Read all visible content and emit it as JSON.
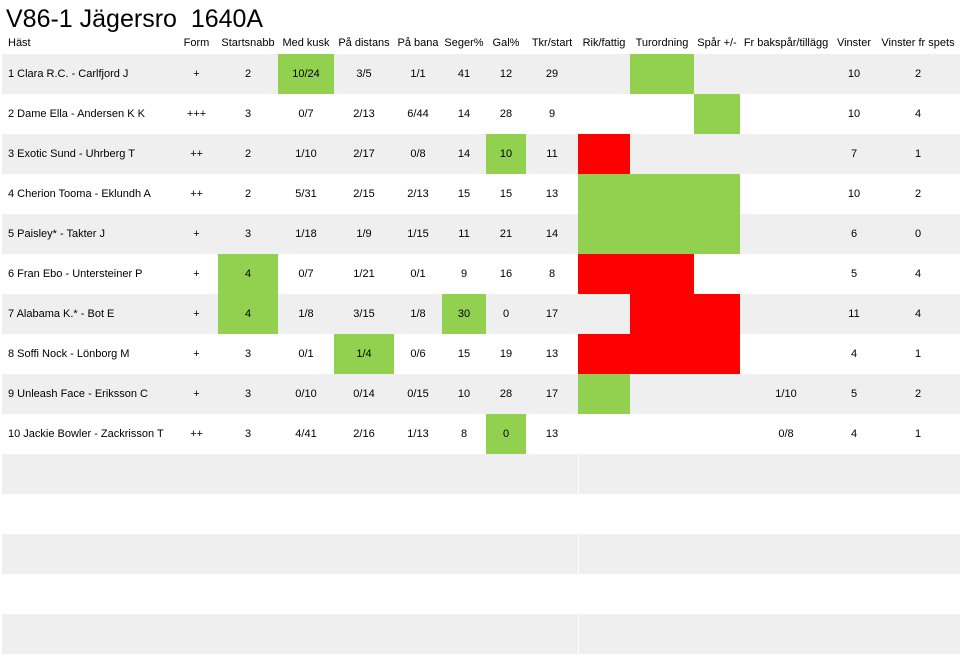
{
  "title": "V86-1 Jägersro  1640A",
  "headers": [
    "Häst",
    "Form",
    "Startsnabb",
    "Med kusk",
    "På distans",
    "På bana",
    "Seger%",
    "Gal%",
    "Tkr/start",
    "Rik/fattig",
    "Turordning",
    "Spår +/-",
    "Fr bakspår/tillägg",
    "Vinster",
    "Vinster fr spets"
  ],
  "rows": [
    {
      "cells": [
        "1 Clara R.C. - Carlfjord J",
        "+",
        "2",
        "10/24",
        "3/5",
        "1/1",
        "41",
        "12",
        "29",
        "",
        "",
        "",
        "",
        "10",
        "2"
      ],
      "colors": [
        "",
        "",
        "",
        "g",
        "",
        "",
        "",
        "",
        "",
        "",
        "g",
        "",
        "",
        "",
        ""
      ]
    },
    {
      "cells": [
        "2 Dame Ella - Andersen K K",
        "+++",
        "3",
        "0/7",
        "2/13",
        "6/44",
        "14",
        "28",
        "9",
        "",
        "",
        "",
        "",
        "10",
        "4"
      ],
      "colors": [
        "",
        "",
        "",
        "",
        "",
        "",
        "",
        "",
        "",
        "",
        "",
        "g",
        "",
        "",
        ""
      ]
    },
    {
      "cells": [
        "3 Exotic Sund - Uhrberg T",
        "++",
        "2",
        "1/10",
        "2/17",
        "0/8",
        "14",
        "10",
        "11",
        "",
        "",
        "",
        "",
        "7",
        "1"
      ],
      "colors": [
        "",
        "",
        "",
        "",
        "",
        "",
        "",
        "g",
        "",
        "r",
        "",
        "",
        "",
        "",
        ""
      ]
    },
    {
      "cells": [
        "4 Cherion Tooma - Eklundh A",
        "++",
        "2",
        "5/31",
        "2/15",
        "2/13",
        "15",
        "15",
        "13",
        "",
        "",
        "",
        "",
        "10",
        "2"
      ],
      "colors": [
        "",
        "",
        "",
        "",
        "",
        "",
        "",
        "",
        "",
        "g",
        "g",
        "g",
        "",
        "",
        ""
      ]
    },
    {
      "cells": [
        "5 Paisley* - Takter J",
        "+",
        "3",
        "1/18",
        "1/9",
        "1/15",
        "11",
        "21",
        "14",
        "",
        "",
        "",
        "",
        "6",
        "0"
      ],
      "colors": [
        "",
        "",
        "",
        "",
        "",
        "",
        "",
        "",
        "",
        "g",
        "g",
        "g",
        "",
        "",
        ""
      ]
    },
    {
      "cells": [
        "6 Fran Ebo - Untersteiner P",
        "+",
        "4",
        "0/7",
        "1/21",
        "0/1",
        "9",
        "16",
        "8",
        "",
        "",
        "",
        "",
        "5",
        "4"
      ],
      "colors": [
        "",
        "",
        "g",
        "",
        "",
        "",
        "",
        "",
        "",
        "r",
        "r",
        "",
        "",
        "",
        ""
      ]
    },
    {
      "cells": [
        "7 Alabama K.* - Bot E",
        "+",
        "4",
        "1/8",
        "3/15",
        "1/8",
        "30",
        "0",
        "17",
        "",
        "",
        "",
        "",
        "11",
        "4"
      ],
      "colors": [
        "",
        "",
        "g",
        "",
        "",
        "",
        "g",
        "",
        "",
        "",
        "r",
        "r",
        "",
        "",
        ""
      ]
    },
    {
      "cells": [
        "8 Soffi Nock - Lönborg M",
        "+",
        "3",
        "0/1",
        "1/4",
        "0/6",
        "15",
        "19",
        "13",
        "",
        "",
        "",
        "",
        "4",
        "1"
      ],
      "colors": [
        "",
        "",
        "",
        "",
        "g",
        "",
        "",
        "",
        "",
        "r",
        "r",
        "r",
        "",
        "",
        ""
      ]
    },
    {
      "cells": [
        "9 Unleash Face - Eriksson C",
        "+",
        "3",
        "0/10",
        "0/14",
        "0/15",
        "10",
        "28",
        "17",
        "",
        "",
        "",
        "1/10",
        "5",
        "2"
      ],
      "colors": [
        "",
        "",
        "",
        "",
        "",
        "",
        "",
        "",
        "",
        "g",
        "",
        "",
        "",
        "",
        ""
      ]
    },
    {
      "cells": [
        "10 Jackie Bowler - Zackrisson T",
        "++",
        "3",
        "4/41",
        "2/16",
        "1/13",
        "8",
        "0",
        "13",
        "",
        "",
        "",
        "0/8",
        "4",
        "1"
      ],
      "colors": [
        "",
        "",
        "",
        "",
        "",
        "",
        "",
        "g",
        "",
        "",
        "",
        "",
        "",
        "",
        ""
      ]
    }
  ],
  "empty_rows": 5
}
